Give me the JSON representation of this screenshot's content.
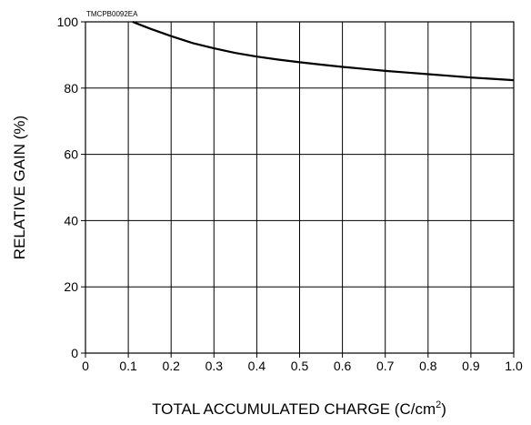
{
  "chart_data": {
    "type": "line",
    "code_label": "TMCPB0092EA",
    "title": "",
    "xlabel": "TOTAL ACCUMULATED CHARGE (C/cm",
    "xlabel_superscript": "2",
    "xlabel_suffix": ")",
    "ylabel": "RELATIVE GAIN (%)",
    "xlim": [
      0,
      1.0
    ],
    "ylim": [
      0,
      100
    ],
    "x_ticks": [
      0,
      0.1,
      0.2,
      0.3,
      0.4,
      0.5,
      0.6,
      0.7,
      0.8,
      0.9,
      1.0
    ],
    "x_tick_labels": [
      "0",
      "0.1",
      "0.2",
      "0.3",
      "0.4",
      "0.5",
      "0.6",
      "0.7",
      "0.8",
      "0.9",
      "1.0"
    ],
    "y_ticks": [
      0,
      20,
      40,
      60,
      80,
      100
    ],
    "y_tick_labels": [
      "0",
      "20",
      "40",
      "60",
      "80",
      "100"
    ],
    "grid": true,
    "series": [
      {
        "x": [
          0.11,
          0.12,
          0.15,
          0.2,
          0.25,
          0.3,
          0.35,
          0.4,
          0.45,
          0.5,
          0.55,
          0.6,
          0.65,
          0.7,
          0.75,
          0.8,
          0.85,
          0.9,
          0.95,
          1.0
        ],
        "y": [
          100,
          99.5,
          98,
          95.7,
          93.6,
          92.0,
          90.6,
          89.5,
          88.6,
          87.8,
          87.1,
          86.4,
          85.8,
          85.2,
          84.7,
          84.2,
          83.7,
          83.2,
          82.8,
          82.4
        ],
        "color": "#000000"
      }
    ]
  }
}
